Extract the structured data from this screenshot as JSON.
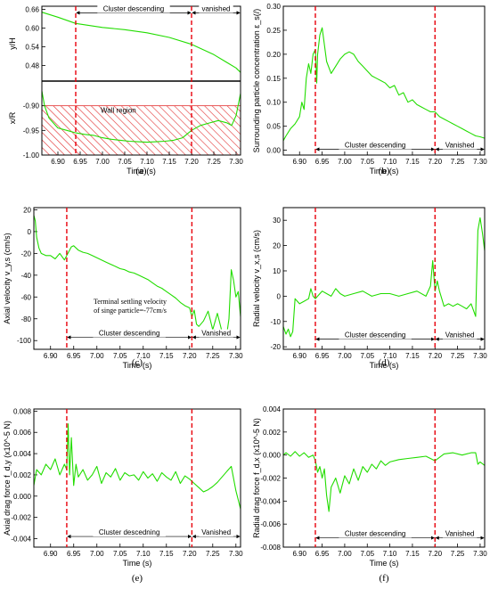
{
  "colors": {
    "series": "#22dd00",
    "marker": "#e8000b",
    "hatch": "#e23030"
  },
  "chart_data": [
    {
      "panel": "a",
      "label": "(a)",
      "type": "line",
      "subplots": [
        {
          "ylabel": "y/H",
          "ylim": [
            0.43,
            0.67
          ],
          "yticks": [
            0.48,
            0.54,
            0.6,
            0.66
          ],
          "ytick_labels": [
            "0.48",
            "0.54",
            "0.60",
            "0.66"
          ],
          "x": [
            6.864,
            6.9,
            6.94,
            7.0,
            7.05,
            7.1,
            7.15,
            7.2,
            7.25,
            7.3,
            7.31
          ],
          "y": [
            0.651,
            0.635,
            0.615,
            0.602,
            0.595,
            0.585,
            0.57,
            0.548,
            0.515,
            0.472,
            0.458
          ]
        },
        {
          "ylabel": "x/R",
          "ylim": [
            -1.0,
            -0.85
          ],
          "yticks": [
            -1.0,
            -0.95,
            -0.9
          ],
          "ytick_labels": [
            "-1.00",
            "-0.95",
            "-0.90"
          ],
          "region": {
            "label": "Wall region",
            "range": [
              -1.0,
              -0.9
            ]
          },
          "x": [
            6.864,
            6.87,
            6.88,
            6.9,
            6.92,
            6.94,
            6.96,
            6.98,
            7.0,
            7.02,
            7.04,
            7.06,
            7.08,
            7.1,
            7.12,
            7.14,
            7.16,
            7.18,
            7.2,
            7.22,
            7.24,
            7.26,
            7.28,
            7.29,
            7.3,
            7.31
          ],
          "y": [
            -0.87,
            -0.9,
            -0.925,
            -0.945,
            -0.95,
            -0.955,
            -0.958,
            -0.96,
            -0.965,
            -0.968,
            -0.97,
            -0.972,
            -0.973,
            -0.974,
            -0.973,
            -0.972,
            -0.97,
            -0.965,
            -0.95,
            -0.94,
            -0.935,
            -0.93,
            -0.935,
            -0.94,
            -0.92,
            -0.875
          ]
        }
      ],
      "xlabel": "Time (s)",
      "xlim": [
        6.864,
        7.31
      ],
      "xticks": [
        6.9,
        6.95,
        7.0,
        7.05,
        7.1,
        7.15,
        7.2,
        7.25,
        7.3
      ],
      "xtick_labels": [
        "6.90",
        "6.95",
        "7.00",
        "7.05",
        "7.10",
        "7.15",
        "7.20",
        "7.25",
        "7.30"
      ],
      "vlines": [
        6.94,
        7.2
      ],
      "phases": [
        {
          "label": "Cluster descending",
          "range": [
            6.94,
            7.2
          ]
        },
        {
          "label": "vanished",
          "range": [
            7.2,
            7.31
          ]
        }
      ],
      "phase_arrows_y": 0.649,
      "note": null
    },
    {
      "panel": "b",
      "label": "(b)",
      "type": "line",
      "ylabel": "Surrounding particle concentration ε_s(/)",
      "ylim": [
        -0.01,
        0.3
      ],
      "yticks": [
        0.0,
        0.05,
        0.1,
        0.15,
        0.2,
        0.25,
        0.3
      ],
      "ytick_labels": [
        "0.00",
        "0.05",
        "0.10",
        "0.15",
        "0.20",
        "0.25",
        "0.30"
      ],
      "xlabel": "Time (s)",
      "xlim": [
        6.864,
        7.31
      ],
      "xticks": [
        6.9,
        6.95,
        7.0,
        7.05,
        7.1,
        7.15,
        7.2,
        7.25,
        7.3
      ],
      "xtick_labels": [
        "6.90",
        "6.95",
        "7.00",
        "7.05",
        "7.10",
        "7.15",
        "7.20",
        "7.25",
        "7.30"
      ],
      "vlines": [
        6.935,
        7.2
      ],
      "phases": [
        {
          "label": "Cluster descending",
          "range": [
            6.935,
            7.2
          ]
        },
        {
          "label": "Vanished",
          "range": [
            7.2,
            7.31
          ]
        }
      ],
      "phase_arrows_y": 0.002,
      "x": [
        6.864,
        6.87,
        6.88,
        6.89,
        6.9,
        6.905,
        6.91,
        6.915,
        6.92,
        6.925,
        6.93,
        6.935,
        6.938,
        6.94,
        6.945,
        6.95,
        6.955,
        6.96,
        6.97,
        6.98,
        6.99,
        7.0,
        7.01,
        7.02,
        7.03,
        7.04,
        7.05,
        7.06,
        7.07,
        7.08,
        7.09,
        7.1,
        7.11,
        7.12,
        7.13,
        7.14,
        7.15,
        7.16,
        7.17,
        7.18,
        7.19,
        7.2,
        7.21,
        7.22,
        7.23,
        7.24,
        7.25,
        7.26,
        7.27,
        7.28,
        7.29,
        7.3,
        7.31
      ],
      "y": [
        0.02,
        0.03,
        0.045,
        0.055,
        0.07,
        0.1,
        0.085,
        0.15,
        0.18,
        0.16,
        0.2,
        0.21,
        0.14,
        0.2,
        0.24,
        0.255,
        0.22,
        0.185,
        0.16,
        0.175,
        0.19,
        0.2,
        0.205,
        0.2,
        0.185,
        0.175,
        0.165,
        0.155,
        0.15,
        0.145,
        0.14,
        0.13,
        0.135,
        0.115,
        0.12,
        0.1,
        0.105,
        0.095,
        0.09,
        0.085,
        0.08,
        0.08,
        0.07,
        0.065,
        0.06,
        0.055,
        0.05,
        0.045,
        0.04,
        0.035,
        0.03,
        0.028,
        0.025
      ]
    },
    {
      "panel": "c",
      "label": "(c)",
      "type": "line",
      "ylabel": "Axial velocity v_y,s (cm/s)",
      "ylim": [
        -108,
        22
      ],
      "yticks": [
        -100,
        -80,
        -60,
        -40,
        -20,
        0,
        20
      ],
      "ytick_labels": [
        "-100",
        "-80",
        "-60",
        "-40",
        "-20",
        "0",
        "20"
      ],
      "xlabel": "Time (s)",
      "xlim": [
        6.864,
        7.31
      ],
      "xticks": [
        6.9,
        6.95,
        7.0,
        7.05,
        7.1,
        7.15,
        7.2,
        7.25,
        7.3
      ],
      "xtick_labels": [
        "6.90",
        "6.95",
        "7.00",
        "7.05",
        "7.10",
        "7.15",
        "7.20",
        "7.25",
        "7.30"
      ],
      "vlines": [
        6.935,
        7.205
      ],
      "phases": [
        {
          "label": "Cluster descending",
          "range": [
            6.935,
            7.205
          ]
        },
        {
          "label": "Vanished",
          "range": [
            7.205,
            7.31
          ]
        }
      ],
      "phase_arrows_y": -97,
      "note": [
        "Terminal settling velocity",
        "of singe particle=-77cm/s"
      ],
      "x": [
        6.864,
        6.867,
        6.87,
        6.875,
        6.88,
        6.89,
        6.9,
        6.91,
        6.92,
        6.93,
        6.935,
        6.94,
        6.945,
        6.95,
        6.96,
        6.97,
        6.98,
        6.99,
        7.0,
        7.01,
        7.02,
        7.03,
        7.04,
        7.05,
        7.06,
        7.07,
        7.08,
        7.09,
        7.1,
        7.11,
        7.12,
        7.13,
        7.14,
        7.15,
        7.16,
        7.17,
        7.18,
        7.19,
        7.2,
        7.205,
        7.21,
        7.215,
        7.22,
        7.23,
        7.24,
        7.25,
        7.26,
        7.27,
        7.28,
        7.285,
        7.29,
        7.295,
        7.3,
        7.305,
        7.31
      ],
      "y": [
        15,
        10,
        -5,
        -15,
        -20,
        -22,
        -22,
        -25,
        -20,
        -26,
        -22,
        -18,
        -14,
        -13,
        -17,
        -19,
        -20,
        -22,
        -24,
        -26,
        -28,
        -30,
        -32,
        -34,
        -35,
        -37,
        -38,
        -40,
        -42,
        -44,
        -47,
        -50,
        -52,
        -55,
        -58,
        -61,
        -65,
        -68,
        -70,
        -78,
        -72,
        -85,
        -87,
        -82,
        -73,
        -90,
        -75,
        -92,
        -95,
        -80,
        -35,
        -45,
        -60,
        -55,
        -78
      ]
    },
    {
      "panel": "d",
      "label": "(d)",
      "type": "line",
      "ylabel": "Radial velocity v_x,s (cm/s)",
      "ylim": [
        -21,
        35
      ],
      "yticks": [
        -20,
        -10,
        0,
        10,
        20,
        30
      ],
      "ytick_labels": [
        "-20",
        "-10",
        "0",
        "10",
        "20",
        "30"
      ],
      "xlabel": "Time (s)",
      "xlim": [
        6.864,
        7.31
      ],
      "xticks": [
        6.9,
        6.95,
        7.0,
        7.05,
        7.1,
        7.15,
        7.2,
        7.25,
        7.3
      ],
      "xtick_labels": [
        "6.90",
        "6.95",
        "7.00",
        "7.05",
        "7.10",
        "7.15",
        "7.20",
        "7.25",
        "7.30"
      ],
      "vlines": [
        6.935,
        7.2
      ],
      "phases": [
        {
          "label": "Cluster descending",
          "range": [
            6.935,
            7.2
          ]
        },
        {
          "label": "Vanished",
          "range": [
            7.2,
            7.31
          ]
        }
      ],
      "phase_arrows_y": -17,
      "x": [
        6.864,
        6.87,
        6.875,
        6.88,
        6.885,
        6.89,
        6.9,
        6.91,
        6.92,
        6.925,
        6.93,
        6.935,
        6.94,
        6.95,
        6.96,
        6.97,
        6.98,
        6.99,
        7.0,
        7.02,
        7.04,
        7.06,
        7.08,
        7.1,
        7.12,
        7.14,
        7.16,
        7.18,
        7.19,
        7.195,
        7.2,
        7.205,
        7.21,
        7.22,
        7.23,
        7.24,
        7.25,
        7.26,
        7.27,
        7.28,
        7.29,
        7.295,
        7.3,
        7.305,
        7.31
      ],
      "y": [
        -12,
        -15,
        -13,
        -16,
        -14,
        -1,
        -3,
        -2,
        -1,
        3,
        0,
        -1,
        0,
        2,
        1,
        0,
        3,
        1,
        0,
        1,
        2,
        0,
        1,
        1,
        0,
        1,
        2,
        0,
        4,
        14,
        2,
        6,
        2,
        -4,
        -3,
        -4,
        -3,
        -4,
        -5,
        -3,
        -8,
        26,
        31,
        25,
        18
      ]
    },
    {
      "panel": "e",
      "label": "(e)",
      "type": "line",
      "ylabel": "Axial drag force f_d,y (x10^-5 N)",
      "ylim": [
        -0.0048,
        0.0082
      ],
      "yticks": [
        -0.004,
        -0.002,
        0.0,
        0.002,
        0.004,
        0.006,
        0.008
      ],
      "ytick_labels": [
        "-0.004",
        "-0.002",
        "0.000",
        "0.002",
        "0.004",
        "0.006",
        "0.008"
      ],
      "xlabel": "Time (s)",
      "xlim": [
        6.864,
        7.31
      ],
      "xticks": [
        6.9,
        6.95,
        7.0,
        7.05,
        7.1,
        7.15,
        7.2,
        7.25,
        7.3
      ],
      "xtick_labels": [
        "6.90",
        "6.95",
        "7.00",
        "7.05",
        "7.10",
        "7.15",
        "7.20",
        "7.25",
        "7.30"
      ],
      "vlines": [
        6.935,
        7.205
      ],
      "phases": [
        {
          "label": "Cluster descedning",
          "range": [
            6.935,
            7.205
          ]
        },
        {
          "label": "Vanished",
          "range": [
            7.205,
            7.31
          ]
        }
      ],
      "phase_arrows_y": -0.0038,
      "x": [
        6.864,
        6.87,
        6.88,
        6.89,
        6.9,
        6.91,
        6.92,
        6.93,
        6.935,
        6.938,
        6.941,
        6.945,
        6.95,
        6.955,
        6.96,
        6.97,
        6.98,
        6.99,
        7.0,
        7.01,
        7.02,
        7.03,
        7.04,
        7.05,
        7.06,
        7.07,
        7.08,
        7.09,
        7.1,
        7.11,
        7.12,
        7.13,
        7.14,
        7.15,
        7.16,
        7.17,
        7.18,
        7.19,
        7.2,
        7.21,
        7.22,
        7.23,
        7.24,
        7.25,
        7.26,
        7.27,
        7.28,
        7.29,
        7.3,
        7.31
      ],
      "y": [
        0.001,
        0.0025,
        0.002,
        0.003,
        0.0025,
        0.0035,
        0.002,
        0.003,
        0.0025,
        0.0068,
        0.002,
        0.0055,
        0.001,
        0.003,
        0.0018,
        0.0025,
        0.0015,
        0.002,
        0.0028,
        0.0012,
        0.0022,
        0.0018,
        0.0026,
        0.0015,
        0.0022,
        0.0019,
        0.002,
        0.0015,
        0.0023,
        0.0017,
        0.0021,
        0.0014,
        0.0022,
        0.0018,
        0.0015,
        0.0023,
        0.0012,
        0.0019,
        0.0016,
        0.0012,
        0.0008,
        0.0004,
        0.0006,
        0.0009,
        0.0013,
        0.0018,
        0.0023,
        0.0028,
        0.0005,
        -0.0012
      ]
    },
    {
      "panel": "f",
      "label": "(f)",
      "type": "line",
      "ylabel": "Radial drag force f_d,x (x10^-5 N)",
      "ylim": [
        -0.008,
        0.004
      ],
      "yticks": [
        -0.008,
        -0.006,
        -0.004,
        -0.002,
        0.0,
        0.002,
        0.004
      ],
      "ytick_labels": [
        "-0.008",
        "-0.006",
        "-0.004",
        "-0.002",
        "0.000",
        "0.002",
        "0.004"
      ],
      "xlabel": "Time (s)",
      "xlim": [
        6.864,
        7.31
      ],
      "xticks": [
        6.9,
        6.95,
        7.0,
        7.05,
        7.1,
        7.15,
        7.2,
        7.25,
        7.3
      ],
      "xtick_labels": [
        "6.90",
        "6.95",
        "7.00",
        "7.05",
        "7.10",
        "7.15",
        "7.20",
        "7.25",
        "7.30"
      ],
      "vlines": [
        6.935,
        7.2
      ],
      "phases": [
        {
          "label": "Cluster descending",
          "range": [
            6.935,
            7.2
          ]
        },
        {
          "label": "Vanished",
          "range": [
            7.2,
            7.31
          ]
        }
      ],
      "phase_arrows_y": -0.0072,
      "x": [
        6.864,
        6.87,
        6.88,
        6.89,
        6.9,
        6.91,
        6.92,
        6.93,
        6.935,
        6.94,
        6.945,
        6.95,
        6.955,
        6.96,
        6.965,
        6.97,
        6.98,
        6.99,
        7.0,
        7.01,
        7.02,
        7.03,
        7.04,
        7.05,
        7.06,
        7.07,
        7.08,
        7.09,
        7.1,
        7.12,
        7.14,
        7.16,
        7.18,
        7.2,
        7.22,
        7.24,
        7.26,
        7.28,
        7.29,
        7.295,
        7.3,
        7.31
      ],
      "y": [
        0.0,
        0.0002,
        -0.0001,
        0.0003,
        -0.0001,
        0.0002,
        -0.0002,
        0.0,
        -0.0005,
        -0.0015,
        -0.001,
        -0.002,
        -0.0012,
        -0.0035,
        -0.0049,
        -0.0028,
        -0.002,
        -0.0033,
        -0.0018,
        -0.0025,
        -0.0012,
        -0.0022,
        -0.001,
        -0.0015,
        -0.0008,
        -0.0012,
        -0.0005,
        -0.0009,
        -0.0006,
        -0.0004,
        -0.0003,
        -0.0002,
        -0.0001,
        -0.0005,
        0.0001,
        0.0002,
        0.0,
        0.0002,
        0.0002,
        -0.0008,
        -0.0006,
        -0.0009
      ]
    }
  ]
}
